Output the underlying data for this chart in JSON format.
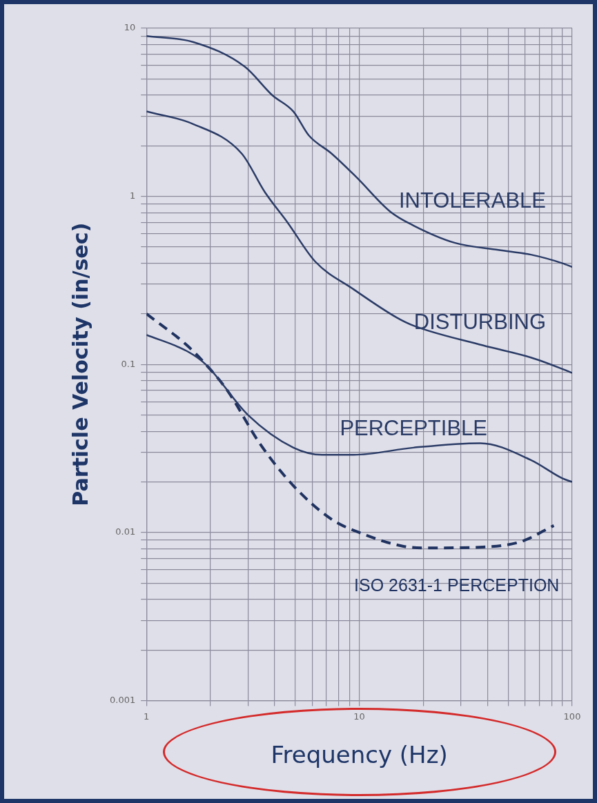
{
  "chart_data": {
    "type": "line",
    "xlabel": "Frequency (Hz)",
    "ylabel": "Particle Velocity (in/sec)",
    "log": "xy",
    "xlim": [
      1,
      100
    ],
    "ylim": [
      0.001,
      10
    ],
    "xticks": [
      1,
      {
        "value": 2,
        "label": null
      },
      {
        "value": 3,
        "label": null
      },
      {
        "value": 4,
        "label": null
      },
      {
        "value": 5,
        "label": null
      },
      {
        "value": 6,
        "label": null
      },
      {
        "value": 7,
        "label": null
      },
      {
        "value": 8,
        "label": null
      },
      {
        "value": 9,
        "label": null
      },
      10,
      {
        "value": 20,
        "label": null
      },
      {
        "value": 30,
        "label": null
      },
      {
        "value": 40,
        "label": null
      },
      {
        "value": 50,
        "label": null
      },
      {
        "value": 60,
        "label": null
      },
      {
        "value": 70,
        "label": null
      },
      {
        "value": 80,
        "label": null
      },
      {
        "value": 90,
        "label": null
      },
      100
    ],
    "yticks": [
      0.001,
      {
        "value": 0.002,
        "label": null
      },
      {
        "value": 0.003,
        "label": null
      },
      {
        "value": 0.004,
        "label": null
      },
      {
        "value": 0.005,
        "label": null
      },
      {
        "value": 0.006,
        "label": null
      },
      {
        "value": 0.007,
        "label": null
      },
      {
        "value": 0.008,
        "label": null
      },
      {
        "value": 0.009,
        "label": null
      },
      0.01,
      {
        "value": 0.02,
        "label": null
      },
      {
        "value": 0.03,
        "label": null
      },
      {
        "value": 0.04,
        "label": null
      },
      {
        "value": 0.05,
        "label": null
      },
      {
        "value": 0.06,
        "label": null
      },
      {
        "value": 0.07,
        "label": null
      },
      {
        "value": 0.08,
        "label": null
      },
      {
        "value": 0.09,
        "label": null
      },
      0.1,
      {
        "value": 0.2,
        "label": null
      },
      {
        "value": 0.3,
        "label": null
      },
      {
        "value": 0.4,
        "label": null
      },
      {
        "value": 0.5,
        "label": null
      },
      {
        "value": 0.6,
        "label": null
      },
      {
        "value": 0.7,
        "label": null
      },
      {
        "value": 0.8,
        "label": null
      },
      {
        "value": 0.9,
        "label": null
      },
      1,
      {
        "value": 2,
        "label": null
      },
      {
        "value": 3,
        "label": null
      },
      {
        "value": 4,
        "label": null
      },
      {
        "value": 5,
        "label": null
      },
      {
        "value": 6,
        "label": null
      },
      {
        "value": 7,
        "label": null
      },
      {
        "value": 8,
        "label": null
      },
      {
        "value": 9,
        "label": null
      },
      10
    ],
    "grid": true,
    "legend": false,
    "marker": "none",
    "series": [
      {
        "name": "INTOLERABLE",
        "color": "#2a3b66",
        "line_style": "solid",
        "x": [
          1,
          1.65,
          2.9,
          3.9,
          4.9,
          5.8,
          7.4,
          9.7,
          14,
          18,
          28,
          45,
          64,
          90,
          100
        ],
        "values": [
          9,
          8.3,
          5.9,
          4,
          3.2,
          2.3,
          1.8,
          1.3,
          0.81,
          0.67,
          0.53,
          0.48,
          0.45,
          0.4,
          0.38
        ]
      },
      {
        "name": "DISTURBING",
        "color": "#2a3b66",
        "line_style": "solid",
        "x": [
          1,
          1.65,
          2.8,
          3.6,
          4.6,
          6.2,
          9.4,
          15,
          18,
          38,
          64,
          90,
          100
        ],
        "values": [
          3.2,
          2.7,
          1.8,
          1.06,
          0.7,
          0.41,
          0.28,
          0.19,
          0.17,
          0.13,
          0.11,
          0.094,
          0.089
        ]
      },
      {
        "name": "PERCEPTIBLE",
        "color": "#2a3b66",
        "line_style": "solid",
        "x": [
          1,
          1.55,
          1.9,
          3,
          4.9,
          6.7,
          9.4,
          18,
          37,
          64,
          90,
          100
        ],
        "values": [
          0.15,
          0.12,
          0.1,
          0.05,
          0.032,
          0.029,
          0.029,
          0.032,
          0.034,
          0.027,
          0.021,
          0.02
        ]
      },
      {
        "name": "ISO 2631-1 PERCEPTION",
        "color": "#1f3260",
        "line_style": "dashed",
        "x": [
          1,
          1.55,
          1.9,
          2.4,
          3.4,
          4.9,
          7.4,
          10,
          16,
          21,
          38,
          57,
          82
        ],
        "values": [
          0.2,
          0.13,
          0.1,
          0.07,
          0.034,
          0.019,
          0.012,
          0.01,
          0.0083,
          0.0081,
          0.0082,
          0.0088,
          0.011
        ]
      }
    ]
  }
}
